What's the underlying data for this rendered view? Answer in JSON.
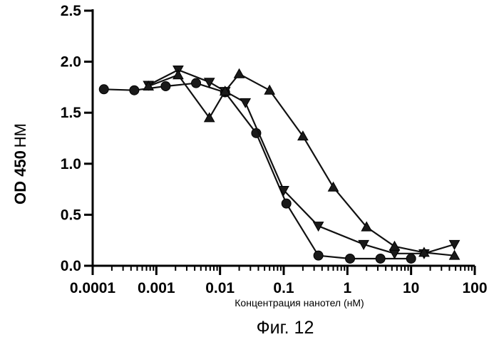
{
  "chart_data": {
    "type": "line",
    "x_scale": "log",
    "xlim": [
      0.0001,
      100
    ],
    "ylim": [
      0.0,
      2.5
    ],
    "x_tick_labels": [
      "0.0001",
      "0.001",
      "0.01",
      "0.1",
      "1",
      "10",
      "100"
    ],
    "y_tick_labels": [
      "0.0",
      "0.5",
      "1.0",
      "1.5",
      "2.0",
      "2.5"
    ],
    "ylabel_main": "OD 450",
    "ylabel_unit": "НМ",
    "xlabel": "Концентрация нанотел (нМ)",
    "caption": "Фиг. 12",
    "grid": false,
    "series": [
      {
        "marker": "circle",
        "points": [
          [
            0.00015,
            1.73
          ],
          [
            0.00045,
            1.72
          ],
          [
            0.0014,
            1.76
          ],
          [
            0.0042,
            1.79
          ],
          [
            0.012,
            1.7
          ],
          [
            0.037,
            1.3
          ],
          [
            0.11,
            0.61
          ],
          [
            0.35,
            0.1
          ],
          [
            1.1,
            0.07
          ],
          [
            3.3,
            0.07
          ],
          [
            10,
            0.07
          ]
        ]
      },
      {
        "marker": "triangle-down",
        "points": [
          [
            0.00075,
            1.77
          ],
          [
            0.0022,
            1.92
          ],
          [
            0.0068,
            1.8
          ],
          [
            0.012,
            1.71
          ],
          [
            0.025,
            1.6
          ],
          [
            0.1,
            0.74
          ],
          [
            0.35,
            0.39
          ],
          [
            1.8,
            0.21
          ],
          [
            5.5,
            0.12
          ],
          [
            16,
            0.12
          ],
          [
            48,
            0.21
          ]
        ]
      },
      {
        "marker": "triangle-up",
        "points": [
          [
            0.00075,
            1.76
          ],
          [
            0.0022,
            1.87
          ],
          [
            0.0068,
            1.45
          ],
          [
            0.012,
            1.71
          ],
          [
            0.02,
            1.88
          ],
          [
            0.06,
            1.72
          ],
          [
            0.2,
            1.27
          ],
          [
            0.6,
            0.77
          ],
          [
            2,
            0.38
          ],
          [
            5.5,
            0.19
          ],
          [
            16,
            0.13
          ],
          [
            48,
            0.1
          ]
        ]
      }
    ]
  }
}
